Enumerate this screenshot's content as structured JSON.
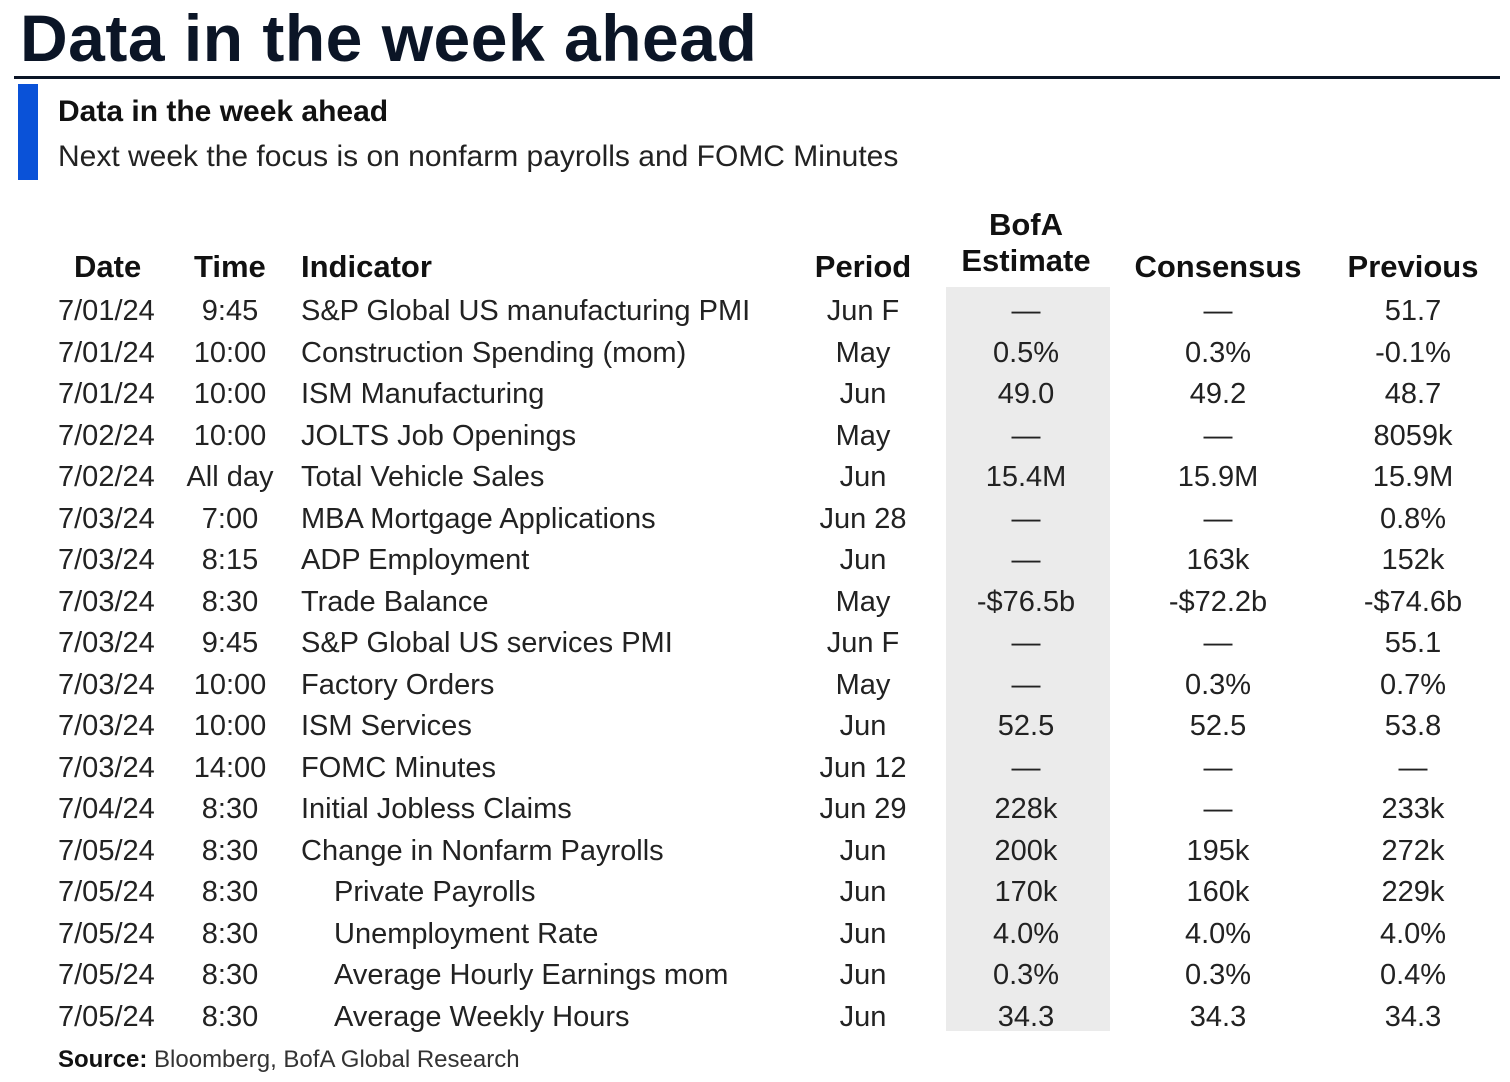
{
  "page_title": "Data in the week ahead",
  "exhibit": {
    "title": "Data in the week ahead",
    "subtitle": "Next week the focus is on nonfarm payrolls and FOMC Minutes"
  },
  "colors": {
    "accent": "#0a52d8",
    "title": "#0b1526",
    "shade": "#ebebeb"
  },
  "table": {
    "headers": {
      "date": "Date",
      "time": "Time",
      "indicator": "Indicator",
      "period": "Period",
      "bofa_line1": "BofA",
      "bofa_line2": "Estimate",
      "consensus": "Consensus",
      "previous": "Previous"
    },
    "rows": [
      {
        "date": "7/01/24",
        "time": "9:45",
        "indicator": "S&P Global US manufacturing PMI",
        "indent": false,
        "period": "Jun F",
        "bofa": "—",
        "consensus": "—",
        "previous": "51.7"
      },
      {
        "date": "7/01/24",
        "time": "10:00",
        "indicator": "Construction Spending (mom)",
        "indent": false,
        "period": "May",
        "bofa": "0.5%",
        "consensus": "0.3%",
        "previous": "-0.1%"
      },
      {
        "date": "7/01/24",
        "time": "10:00",
        "indicator": "ISM Manufacturing",
        "indent": false,
        "period": "Jun",
        "bofa": "49.0",
        "consensus": "49.2",
        "previous": "48.7"
      },
      {
        "date": "7/02/24",
        "time": "10:00",
        "indicator": "JOLTS Job Openings",
        "indent": false,
        "period": "May",
        "bofa": "—",
        "consensus": "—",
        "previous": "8059k"
      },
      {
        "date": "7/02/24",
        "time": "All day",
        "indicator": "Total Vehicle Sales",
        "indent": false,
        "period": "Jun",
        "bofa": "15.4M",
        "consensus": "15.9M",
        "previous": "15.9M"
      },
      {
        "date": "7/03/24",
        "time": "7:00",
        "indicator": "MBA Mortgage Applications",
        "indent": false,
        "period": "Jun 28",
        "bofa": "—",
        "consensus": "—",
        "previous": "0.8%"
      },
      {
        "date": "7/03/24",
        "time": "8:15",
        "indicator": "ADP Employment",
        "indent": false,
        "period": "Jun",
        "bofa": "—",
        "consensus": "163k",
        "previous": "152k"
      },
      {
        "date": "7/03/24",
        "time": "8:30",
        "indicator": "Trade Balance",
        "indent": false,
        "period": "May",
        "bofa": "-$76.5b",
        "consensus": "-$72.2b",
        "previous": "-$74.6b"
      },
      {
        "date": "7/03/24",
        "time": "9:45",
        "indicator": "S&P Global US services PMI",
        "indent": false,
        "period": "Jun F",
        "bofa": "—",
        "consensus": "—",
        "previous": "55.1"
      },
      {
        "date": "7/03/24",
        "time": "10:00",
        "indicator": "Factory Orders",
        "indent": false,
        "period": "May",
        "bofa": "—",
        "consensus": "0.3%",
        "previous": "0.7%"
      },
      {
        "date": "7/03/24",
        "time": "10:00",
        "indicator": "ISM Services",
        "indent": false,
        "period": "Jun",
        "bofa": "52.5",
        "consensus": "52.5",
        "previous": "53.8"
      },
      {
        "date": "7/03/24",
        "time": "14:00",
        "indicator": "FOMC Minutes",
        "indent": false,
        "period": "Jun 12",
        "bofa": "—",
        "consensus": "—",
        "previous": "—"
      },
      {
        "date": "7/04/24",
        "time": "8:30",
        "indicator": "Initial Jobless Claims",
        "indent": false,
        "period": "Jun 29",
        "bofa": "228k",
        "consensus": "—",
        "previous": "233k"
      },
      {
        "date": "7/05/24",
        "time": "8:30",
        "indicator": "Change in Nonfarm Payrolls",
        "indent": false,
        "period": "Jun",
        "bofa": "200k",
        "consensus": "195k",
        "previous": "272k"
      },
      {
        "date": "7/05/24",
        "time": "8:30",
        "indicator": "Private Payrolls",
        "indent": true,
        "period": "Jun",
        "bofa": "170k",
        "consensus": "160k",
        "previous": "229k"
      },
      {
        "date": "7/05/24",
        "time": "8:30",
        "indicator": "Unemployment Rate",
        "indent": true,
        "period": "Jun",
        "bofa": "4.0%",
        "consensus": "4.0%",
        "previous": "4.0%"
      },
      {
        "date": "7/05/24",
        "time": "8:30",
        "indicator": "Average Hourly Earnings mom",
        "indent": true,
        "period": "Jun",
        "bofa": "0.3%",
        "consensus": "0.3%",
        "previous": "0.4%"
      },
      {
        "date": "7/05/24",
        "time": "8:30",
        "indicator": "Average Weekly Hours",
        "indent": true,
        "period": "Jun",
        "bofa": "34.3",
        "consensus": "34.3",
        "previous": "34.3"
      }
    ]
  },
  "source": {
    "label": "Source:",
    "text": " Bloomberg, BofA Global Research"
  }
}
